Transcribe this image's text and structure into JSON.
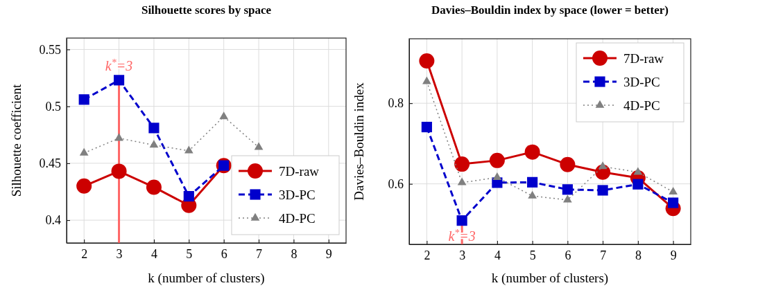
{
  "chart_data": [
    {
      "type": "line",
      "title": "Silhouette scores by space",
      "xlabel": "k (number of clusters)",
      "ylabel": "Silhouette coefficient",
      "x": [
        2,
        3,
        4,
        5,
        6,
        7
      ],
      "xlim": [
        1.5,
        9.5
      ],
      "xticks": [
        2,
        3,
        4,
        5,
        6,
        7,
        8,
        9
      ],
      "ylim": [
        0.38,
        0.56
      ],
      "yticks": [
        0.4,
        0.45,
        0.5,
        0.55
      ],
      "grid": true,
      "legend": "bottom right",
      "series": [
        {
          "name": "7D-raw",
          "color": "#cc0000",
          "marker": "circle",
          "line_style": "solid",
          "values": [
            0.43,
            0.443,
            0.429,
            0.413,
            0.448,
            null
          ]
        },
        {
          "name": "3D-PC",
          "color": "#0000cc",
          "marker": "square",
          "line_style": "dashed",
          "values": [
            0.506,
            0.523,
            0.481,
            0.421,
            0.448,
            null
          ]
        },
        {
          "name": "4D-PC",
          "color": "#808080",
          "marker": "triangle",
          "line_style": "dotted",
          "values": [
            0.459,
            0.472,
            0.466,
            0.461,
            0.491,
            0.464
          ]
        }
      ],
      "ref_lines": [
        {
          "axis": "x",
          "value": 3,
          "color": "#ff6666",
          "label": "k$^{*}$=3"
        }
      ]
    },
    {
      "type": "line",
      "title": "Davies–Bouldin index by space (lower = better)",
      "xlabel": "k (number of clusters)",
      "ylabel": "Davies–Bouldin index",
      "x": [
        2,
        3,
        4,
        5,
        6,
        7,
        8,
        9
      ],
      "xlim": [
        1.5,
        9.5
      ],
      "xticks": [
        2,
        3,
        4,
        5,
        6,
        7,
        8,
        9
      ],
      "ylim": [
        0.45,
        0.96
      ],
      "yticks": [
        0.6,
        0.8
      ],
      "grid": true,
      "legend": "top right",
      "series": [
        {
          "name": "7D-raw",
          "color": "#cc0000",
          "marker": "circle",
          "line_style": "solid",
          "values": [
            0.905,
            0.649,
            0.658,
            0.679,
            0.648,
            0.629,
            0.615,
            0.539
          ]
        },
        {
          "name": "3D-PC",
          "color": "#0000cc",
          "marker": "square",
          "line_style": "dashed",
          "values": [
            0.741,
            0.509,
            0.603,
            0.604,
            0.586,
            0.584,
            0.599,
            0.553
          ]
        },
        {
          "name": "4D-PC",
          "color": "#808080",
          "marker": "triangle",
          "line_style": "dotted",
          "values": [
            0.854,
            0.603,
            0.616,
            0.57,
            0.56,
            0.643,
            0.629,
            0.58
          ]
        }
      ],
      "ref_lines": [
        {
          "axis": "x",
          "value": 3,
          "color": "#ff6666",
          "label": "k$^{*}$=3"
        }
      ]
    }
  ]
}
